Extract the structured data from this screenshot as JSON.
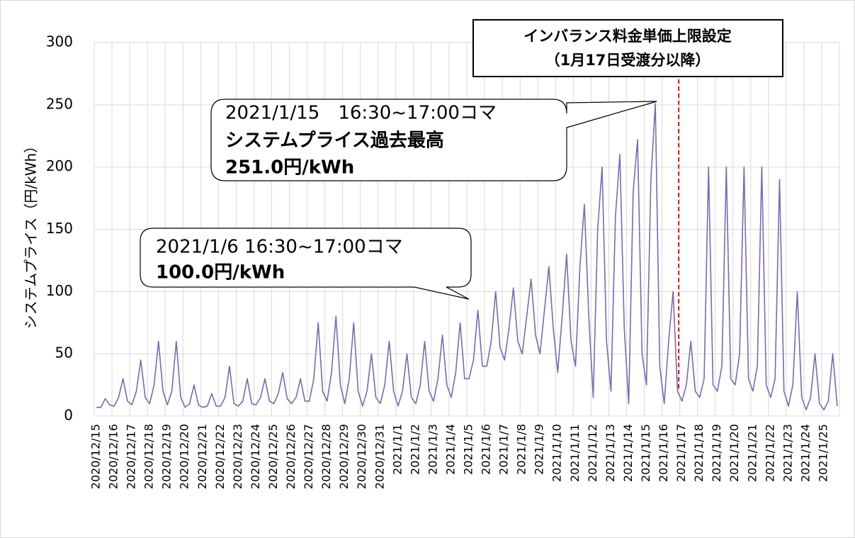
{
  "chart_data": {
    "type": "line",
    "y_label": "システムプライス（円/kWh）",
    "ylim": [
      0,
      300
    ],
    "yticks": [
      0,
      50,
      100,
      150,
      200,
      250,
      300
    ],
    "grid": true,
    "categories": [
      "2020/12/15",
      null,
      null,
      null,
      "2020/12/16",
      null,
      null,
      null,
      "2020/12/17",
      null,
      null,
      null,
      "2020/12/18",
      null,
      null,
      null,
      "2020/12/19",
      null,
      null,
      null,
      "2020/12/20",
      null,
      null,
      null,
      "2020/12/21",
      null,
      null,
      null,
      "2020/12/22",
      null,
      null,
      null,
      "2020/12/23",
      null,
      null,
      null,
      "2020/12/24",
      null,
      null,
      null,
      "2020/12/25",
      null,
      null,
      null,
      "2020/12/26",
      null,
      null,
      null,
      "2020/12/27",
      null,
      null,
      null,
      "2020/12/28",
      null,
      null,
      null,
      "2020/12/29",
      null,
      null,
      null,
      "2020/12/30",
      null,
      null,
      null,
      "2020/12/31",
      null,
      null,
      null,
      "2021/1/1",
      null,
      null,
      null,
      "2021/1/2",
      null,
      null,
      null,
      "2021/1/3",
      null,
      null,
      null,
      "2021/1/4",
      null,
      null,
      null,
      "2021/1/5",
      null,
      null,
      null,
      "2021/1/6",
      null,
      null,
      null,
      "2021/1/7",
      null,
      null,
      null,
      "2021/1/8",
      null,
      null,
      null,
      "2021/1/9",
      null,
      null,
      null,
      "2021/1/10",
      null,
      null,
      null,
      "2021/1/11",
      null,
      null,
      null,
      "2021/1/12",
      null,
      null,
      null,
      "2021/1/13",
      null,
      null,
      null,
      "2021/1/14",
      null,
      null,
      null,
      "2021/1/15",
      null,
      null,
      null,
      "2021/1/16",
      null,
      null,
      null,
      "2021/1/17",
      null,
      null,
      null,
      "2021/1/18",
      null,
      null,
      null,
      "2021/1/19",
      null,
      null,
      null,
      "2021/1/20",
      null,
      null,
      null,
      "2021/1/21",
      null,
      null,
      null,
      "2021/1/22",
      null,
      null,
      null,
      "2021/1/23",
      null,
      null,
      null,
      "2021/1/24",
      null,
      null,
      null,
      "2021/1/25",
      null,
      null,
      null
    ],
    "series": [
      {
        "color": "#7f68aa",
        "values": [
          7,
          7,
          14,
          9,
          8,
          15,
          30,
          12,
          9,
          20,
          45,
          15,
          10,
          25,
          60,
          20,
          9,
          20,
          60,
          15,
          7,
          10,
          25,
          9,
          7,
          8,
          18,
          8,
          8,
          15,
          40,
          10,
          8,
          12,
          30,
          10,
          9,
          15,
          30,
          12,
          10,
          18,
          35,
          14,
          10,
          15,
          30,
          12,
          12,
          30,
          75,
          20,
          12,
          35,
          80,
          25,
          10,
          30,
          75,
          20,
          8,
          20,
          50,
          15,
          10,
          25,
          60,
          20,
          8,
          20,
          50,
          15,
          10,
          25,
          60,
          20,
          12,
          30,
          65,
          25,
          15,
          35,
          75,
          30,
          30,
          45,
          85,
          40,
          40,
          60,
          100,
          55,
          45,
          70,
          103,
          60,
          50,
          80,
          110,
          65,
          50,
          85,
          120,
          70,
          35,
          80,
          130,
          60,
          40,
          120,
          170,
          80,
          15,
          150,
          200,
          60,
          20,
          160,
          210,
          70,
          10,
          180,
          222,
          50,
          25,
          190,
          251,
          40,
          10,
          60,
          100,
          20,
          12,
          25,
          60,
          20,
          15,
          30,
          200,
          25,
          20,
          40,
          200,
          30,
          25,
          50,
          200,
          30,
          20,
          40,
          200,
          25,
          15,
          30,
          190,
          20,
          8,
          25,
          100,
          15,
          5,
          15,
          50,
          10,
          5,
          12,
          50,
          8
        ]
      }
    ],
    "annotations": [
      {
        "lines": [
          "2021/1/15　16:30~17:00コマ",
          "システムプライス過去最高",
          "251.0円/kWh"
        ]
      },
      {
        "lines": [
          "2021/1/6 16:30~17:00コマ",
          "100.0円/kWh"
        ]
      },
      {
        "lines": [
          "インバランス料金単価上限設定",
          "（1月17日受渡分以降）"
        ]
      }
    ]
  }
}
